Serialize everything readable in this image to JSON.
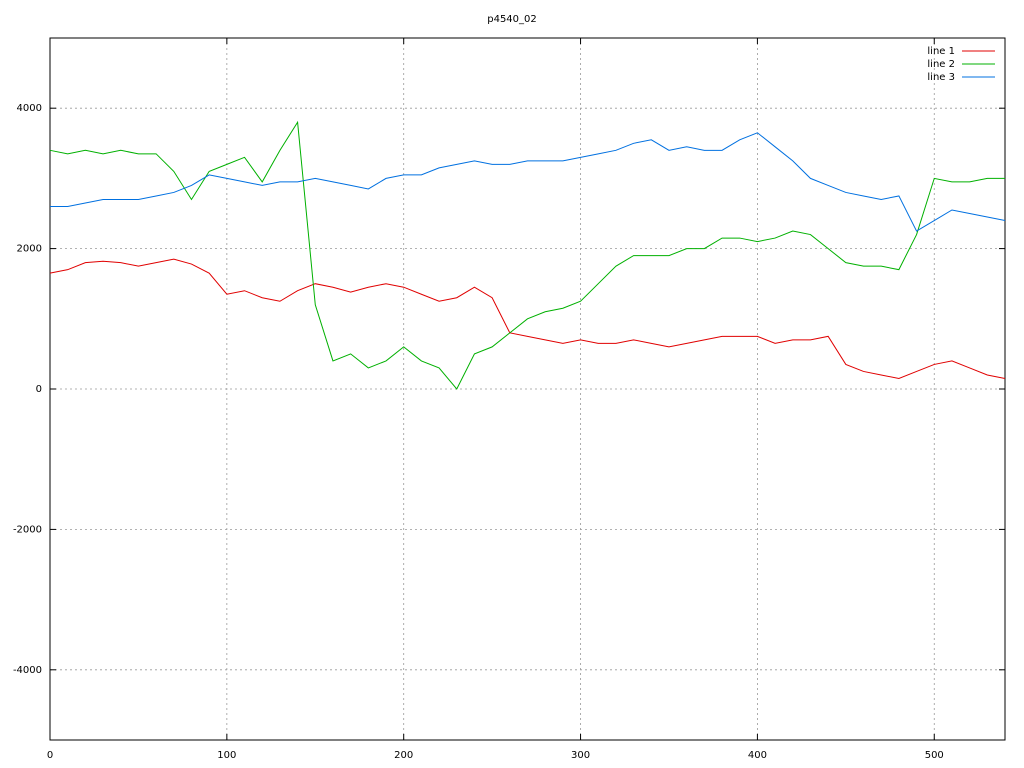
{
  "chart_data": {
    "type": "line",
    "title": "p4540_02",
    "x": [
      0,
      10,
      20,
      30,
      40,
      50,
      60,
      70,
      80,
      90,
      100,
      110,
      120,
      130,
      140,
      150,
      160,
      170,
      180,
      190,
      200,
      210,
      220,
      230,
      240,
      250,
      260,
      270,
      280,
      290,
      300,
      310,
      320,
      330,
      340,
      350,
      360,
      370,
      380,
      390,
      400,
      410,
      420,
      430,
      440,
      450,
      460,
      470,
      480,
      490,
      500,
      510,
      520,
      530,
      540
    ],
    "series": [
      {
        "name": "line 1",
        "color": "#e00000",
        "values": [
          1650,
          1700,
          1800,
          1820,
          1800,
          1750,
          1800,
          1850,
          1780,
          1650,
          1350,
          1400,
          1300,
          1250,
          1400,
          1500,
          1450,
          1380,
          1450,
          1500,
          1450,
          1350,
          1250,
          1300,
          1450,
          1300,
          800,
          750,
          700,
          650,
          700,
          650,
          650,
          700,
          650,
          600,
          650,
          700,
          750,
          750,
          750,
          650,
          700,
          700,
          750,
          350,
          250,
          200,
          150,
          250,
          350,
          400,
          300,
          200,
          150
        ]
      },
      {
        "name": "line 2",
        "color": "#00b000",
        "values": [
          3400,
          3350,
          3400,
          3350,
          3400,
          3350,
          3350,
          3100,
          2700,
          3100,
          3200,
          3300,
          2950,
          3400,
          3800,
          1200,
          400,
          500,
          300,
          400,
          600,
          400,
          300,
          0,
          500,
          600,
          800,
          1000,
          1100,
          1150,
          1250,
          1500,
          1750,
          1900,
          1900,
          1900,
          2000,
          2000,
          2150,
          2150,
          2100,
          2150,
          2250,
          2200,
          2000,
          1800,
          1750,
          1750,
          1700,
          2200,
          3000,
          2950,
          2950,
          3000,
          3000
        ]
      },
      {
        "name": "line 3",
        "color": "#0070e0",
        "values": [
          2600,
          2600,
          2650,
          2700,
          2700,
          2700,
          2750,
          2800,
          2900,
          3050,
          3000,
          2950,
          2900,
          2950,
          2950,
          3000,
          2950,
          2900,
          2850,
          3000,
          3050,
          3050,
          3150,
          3200,
          3250,
          3200,
          3200,
          3250,
          3250,
          3250,
          3300,
          3350,
          3400,
          3500,
          3550,
          3400,
          3450,
          3400,
          3400,
          3550,
          3650,
          3450,
          3250,
          3000,
          2900,
          2800,
          2750,
          2700,
          2750,
          2250,
          2400,
          2550,
          2500,
          2450,
          2400
        ]
      }
    ],
    "xlim": [
      0,
      540
    ],
    "xticks": [
      0,
      100,
      200,
      300,
      400,
      500
    ],
    "ylim": [
      -5000,
      5000
    ],
    "yticks": [
      -4000,
      -2000,
      0,
      2000,
      4000
    ],
    "grid": true,
    "legend": "top-right"
  }
}
